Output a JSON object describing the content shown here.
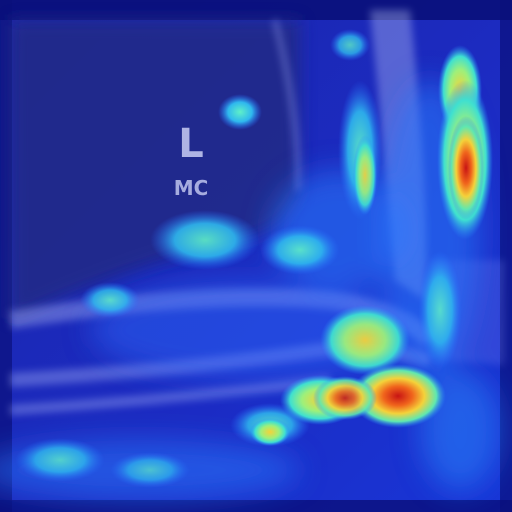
{
  "image": {
    "kind": "radiograph with attention heatmap overlay",
    "colormap": "jet",
    "palette": {
      "background": "#0a0f6e",
      "cold": "#1a2bd8",
      "cool": "#2a8cff",
      "mid": "#3fe0d0",
      "warm": "#f4d23a",
      "hot": "#e8401c"
    }
  },
  "marker": {
    "letter": "L",
    "label": "MC"
  }
}
